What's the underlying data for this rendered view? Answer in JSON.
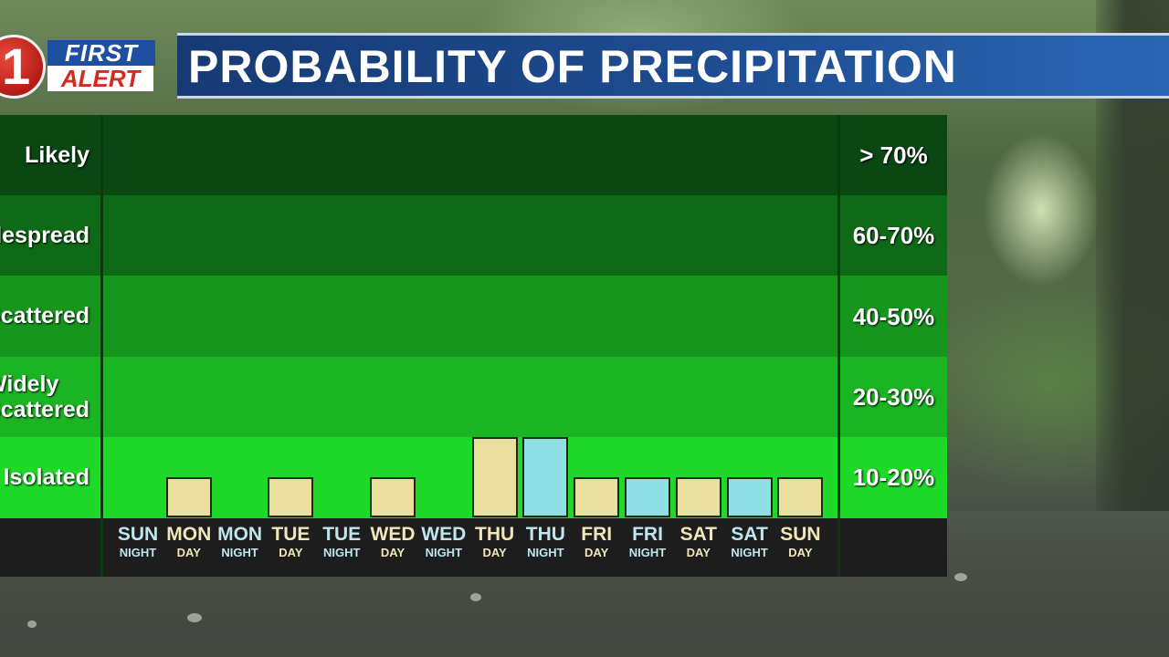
{
  "logo": {
    "number": "1",
    "first": "FIRST",
    "alert": "ALERT"
  },
  "title": "PROBABILITY OF PRECIPITATION",
  "chart_data": {
    "type": "bar",
    "title": "PROBABILITY OF PRECIPITATION",
    "bands": [
      {
        "label": "Likely",
        "range": "> 70%",
        "color": "#0b4712"
      },
      {
        "label": "Widespread",
        "range": "60-70%",
        "color": "#0f6a17"
      },
      {
        "label": "Scattered",
        "range": "40-50%",
        "color": "#16961d"
      },
      {
        "label": "Widely\nScattered",
        "range": "20-30%",
        "color": "#1bb523"
      },
      {
        "label": "Isolated",
        "range": "10-20%",
        "color": "#1fd928"
      }
    ],
    "categories": [
      {
        "day": "SUN",
        "period": "NIGHT",
        "kind": "night"
      },
      {
        "day": "MON",
        "period": "DAY",
        "kind": "day"
      },
      {
        "day": "MON",
        "period": "NIGHT",
        "kind": "night"
      },
      {
        "day": "TUE",
        "period": "DAY",
        "kind": "day"
      },
      {
        "day": "TUE",
        "period": "NIGHT",
        "kind": "night"
      },
      {
        "day": "WED",
        "period": "DAY",
        "kind": "day"
      },
      {
        "day": "WED",
        "period": "NIGHT",
        "kind": "night"
      },
      {
        "day": "THU",
        "period": "DAY",
        "kind": "day"
      },
      {
        "day": "THU",
        "period": "NIGHT",
        "kind": "night"
      },
      {
        "day": "FRI",
        "period": "DAY",
        "kind": "day"
      },
      {
        "day": "FRI",
        "period": "NIGHT",
        "kind": "night"
      },
      {
        "day": "SAT",
        "period": "DAY",
        "kind": "day"
      },
      {
        "day": "SAT",
        "period": "NIGHT",
        "kind": "night"
      },
      {
        "day": "SUN",
        "period": "DAY",
        "kind": "day"
      }
    ],
    "values": [
      0,
      0.5,
      0,
      0.5,
      0,
      0.5,
      0,
      1,
      1,
      0.5,
      0.5,
      0.5,
      0.5,
      0.5
    ],
    "value_unit": "bands (0-5; 1 = one full band height)",
    "ylim": [
      0,
      5
    ],
    "colors": {
      "day": "#ebdf9f",
      "night": "#8fe0e4"
    }
  }
}
